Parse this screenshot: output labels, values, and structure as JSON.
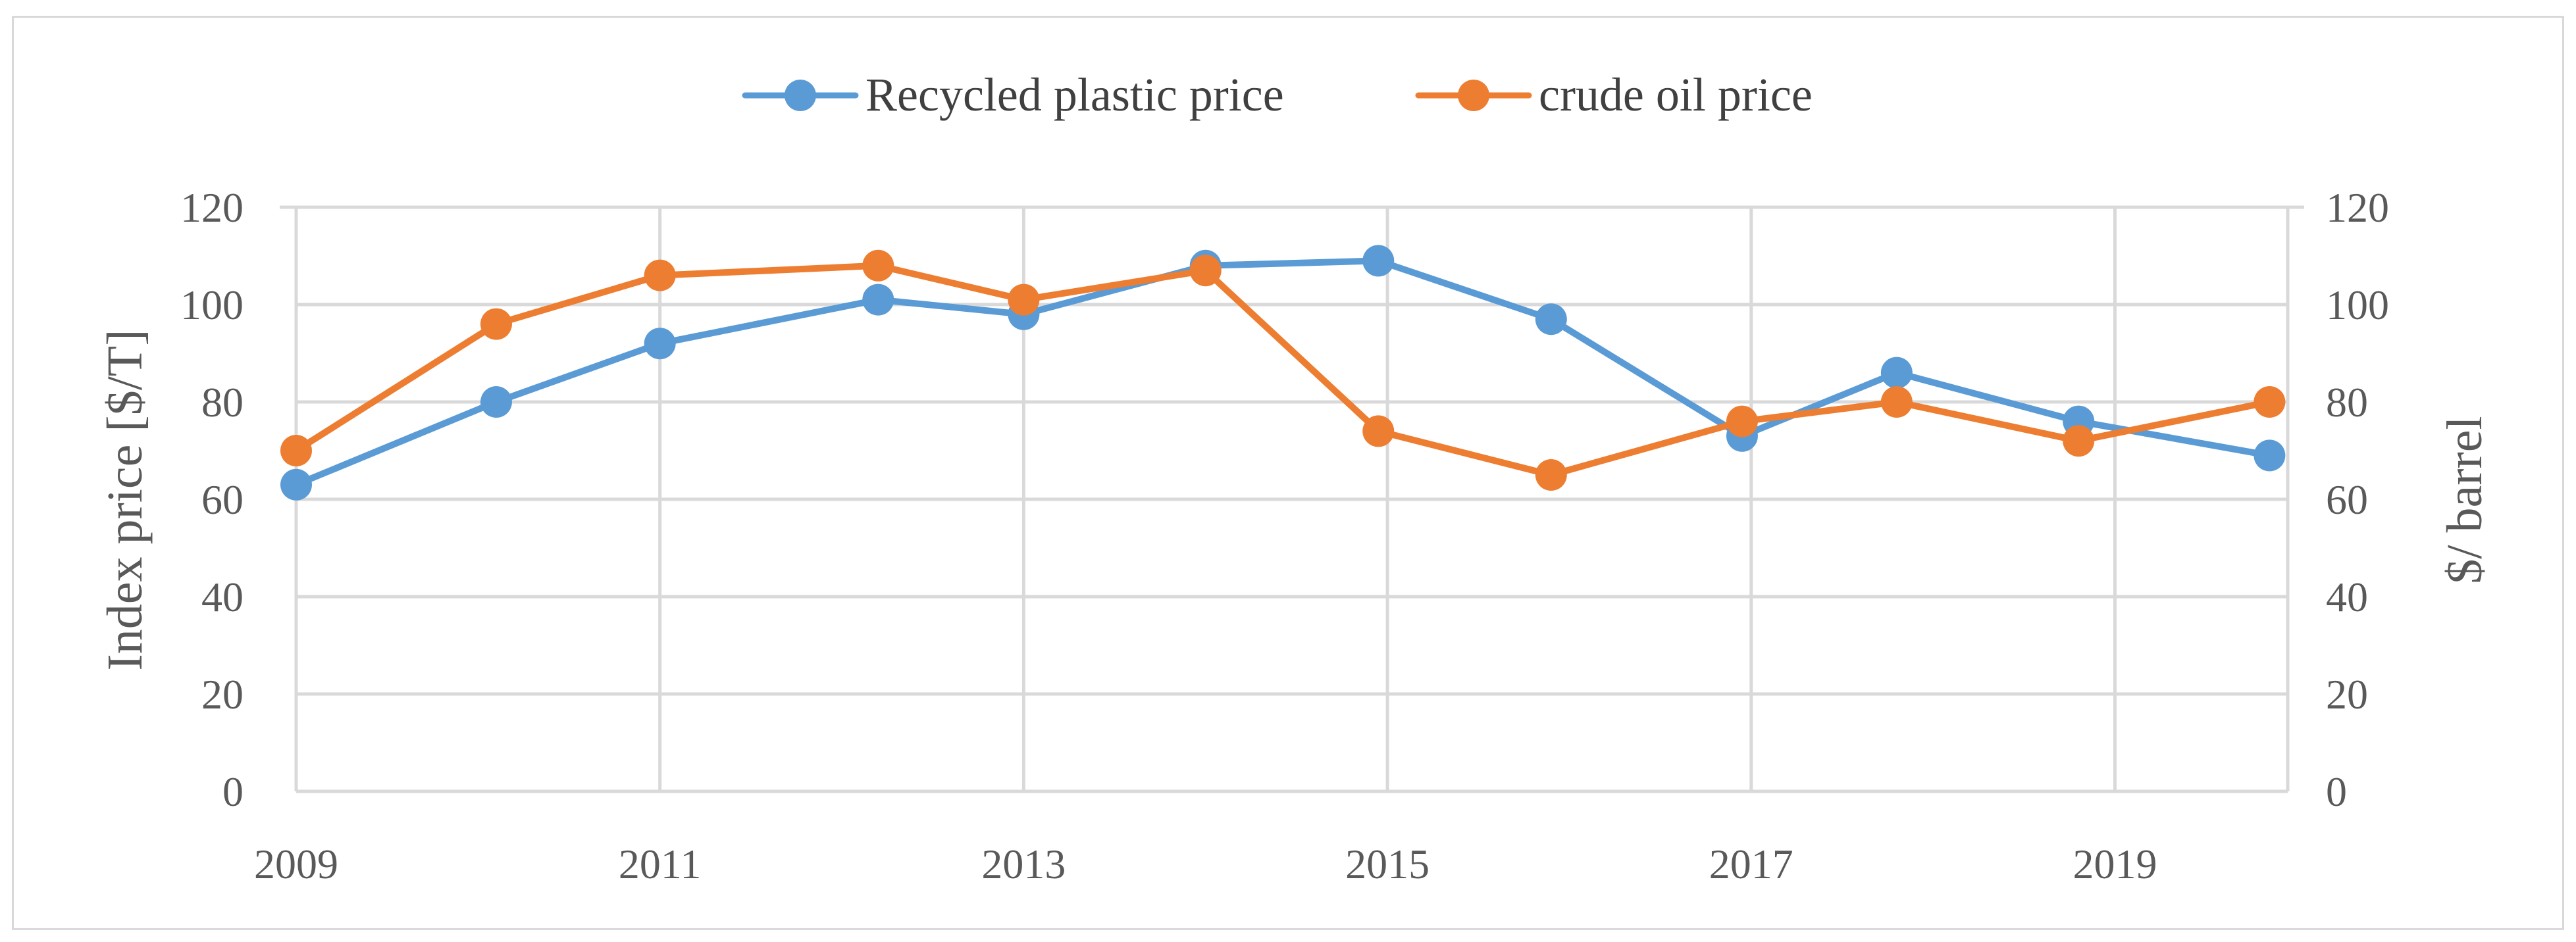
{
  "chart_data": {
    "type": "line",
    "title": "",
    "x": [
      2009.0,
      2010.0,
      2011.0,
      2012.0,
      2013.0,
      2014.0,
      2015.0,
      2016.0,
      2017.0,
      2017.8,
      2018.8,
      2019.8
    ],
    "series": [
      {
        "name": "Recycled plastic price",
        "axis": "left",
        "color": "#5b9bd5",
        "x": [
          2009.0,
          2010.1,
          2011.0,
          2012.2,
          2013.0,
          2014.0,
          2014.95,
          2015.9,
          2016.95,
          2017.8,
          2018.8,
          2019.85
        ],
        "values": [
          63,
          80,
          92,
          101,
          98,
          108,
          109,
          97,
          73,
          86,
          76,
          69
        ]
      },
      {
        "name": "crude oil price",
        "axis": "right",
        "color": "#ed7d31",
        "x": [
          2009.0,
          2010.1,
          2011.0,
          2012.2,
          2013.0,
          2014.0,
          2014.95,
          2015.9,
          2016.95,
          2017.8,
          2018.8,
          2019.85
        ],
        "values": [
          70,
          96,
          106,
          108,
          101,
          107,
          74,
          65,
          76,
          80,
          72,
          80
        ]
      }
    ],
    "xlim": [
      2009,
      2019.95
    ],
    "xticks": [
      "2009",
      "2011",
      "2013",
      "2015",
      "2017",
      "2019"
    ],
    "xtick_values": [
      2009,
      2011,
      2013,
      2015,
      2017,
      2019
    ],
    "ylim_left": [
      0,
      120
    ],
    "ylim_right": [
      0,
      120
    ],
    "yticks_left": [
      "0",
      "20",
      "40",
      "60",
      "80",
      "100",
      "120"
    ],
    "yticks_right": [
      "0",
      "20",
      "40",
      "60",
      "80",
      "100",
      "120"
    ],
    "ytick_values": [
      0,
      20,
      40,
      60,
      80,
      100,
      120
    ],
    "ylabel_left": "Index  price [$/T]",
    "ylabel_right": "$/ barrel",
    "xlabel": "",
    "grid": true,
    "legend_position": "top-center",
    "gridline_color": "#d9d9d9"
  }
}
